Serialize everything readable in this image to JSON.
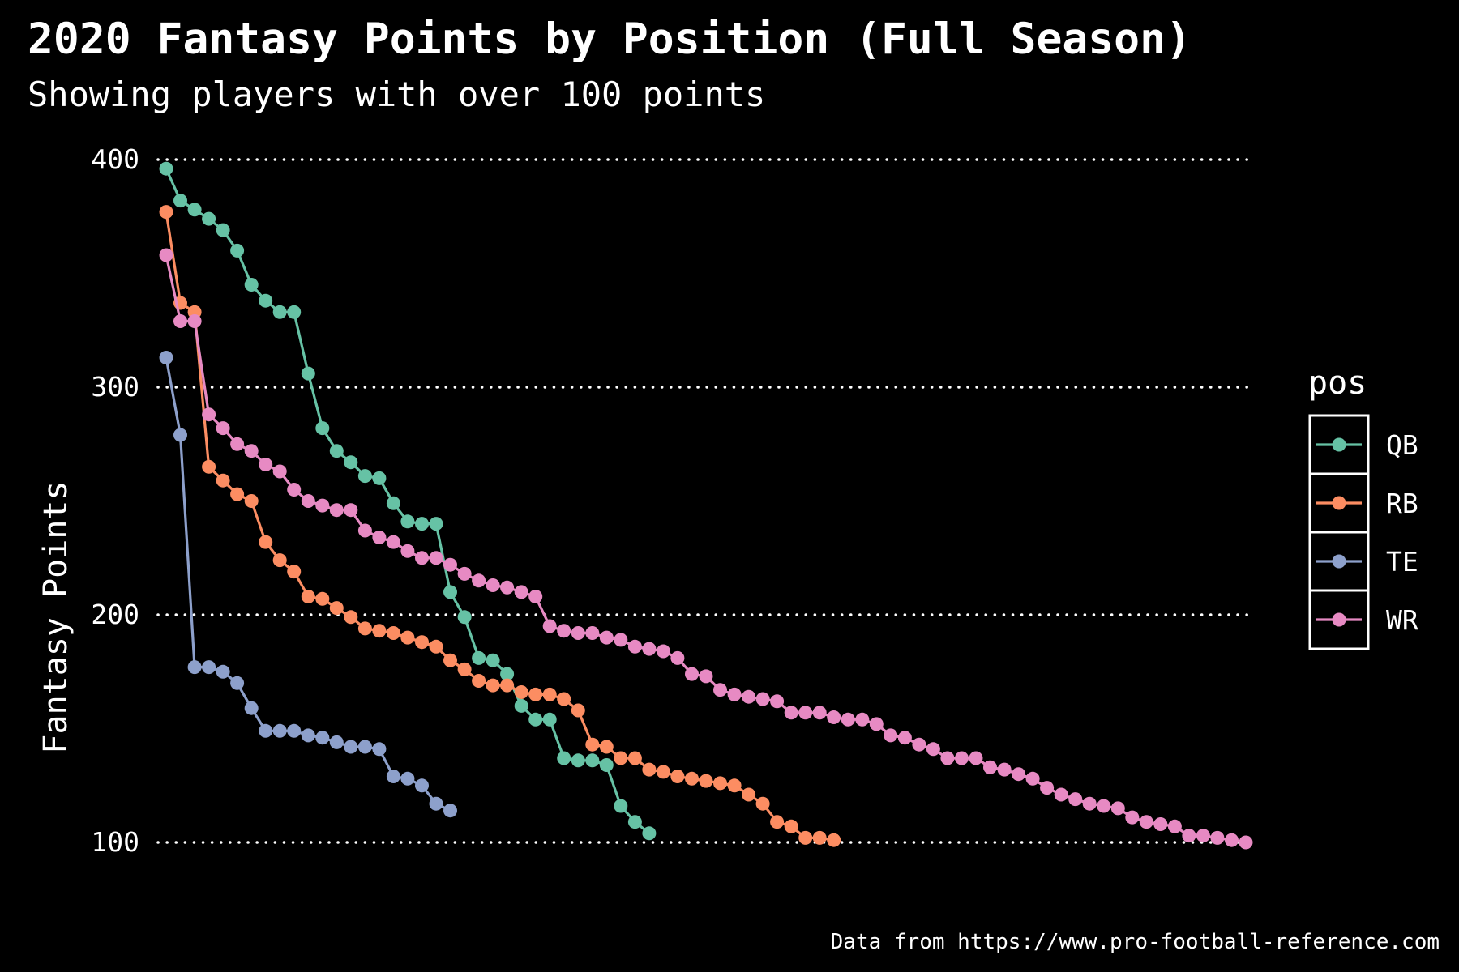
{
  "title": "2020 Fantasy Points by Position (Full Season)",
  "subtitle": "Showing players with over 100 points",
  "caption": "Data from https://www.pro-football-reference.com",
  "chart_data": {
    "type": "line",
    "ylabel": "Fantasy Points",
    "xlabel": "",
    "ylim": [
      75,
      400
    ],
    "xlim": [
      1,
      77
    ],
    "yticks": [
      100,
      200,
      300,
      400
    ],
    "grid": "horizontal dotted",
    "legend_title": "pos",
    "legend_position": "right",
    "background": "#000000",
    "series": [
      {
        "name": "QB",
        "color": "#66c2a5",
        "values": [
          396,
          382,
          378,
          374,
          369,
          360,
          345,
          338,
          333,
          333,
          306,
          282,
          272,
          267,
          261,
          260,
          249,
          241,
          240,
          240,
          210,
          199,
          181,
          180,
          174,
          160,
          154,
          154,
          137,
          136,
          136,
          134,
          116,
          109,
          104
        ]
      },
      {
        "name": "RB",
        "color": "#fc8d62",
        "values": [
          377,
          337,
          333,
          265,
          259,
          253,
          250,
          232,
          224,
          219,
          208,
          207,
          203,
          199,
          194,
          193,
          192,
          190,
          188,
          186,
          180,
          176,
          171,
          169,
          169,
          166,
          165,
          165,
          163,
          158,
          143,
          142,
          137,
          137,
          132,
          131,
          129,
          128,
          127,
          126,
          125,
          121,
          117,
          109,
          107,
          102,
          102,
          101
        ]
      },
      {
        "name": "TE",
        "color": "#8da0cb",
        "values": [
          313,
          279,
          177,
          177,
          175,
          170,
          159,
          149,
          149,
          149,
          147,
          146,
          144,
          142,
          142,
          141,
          129,
          128,
          125,
          117,
          114
        ]
      },
      {
        "name": "WR",
        "color": "#e78ac3",
        "values": [
          358,
          329,
          329,
          288,
          282,
          275,
          272,
          266,
          263,
          255,
          250,
          248,
          246,
          246,
          237,
          234,
          232,
          228,
          225,
          225,
          222,
          218,
          215,
          213,
          212,
          210,
          208,
          195,
          193,
          192,
          192,
          190,
          189,
          186,
          185,
          184,
          181,
          174,
          173,
          167,
          165,
          164,
          163,
          162,
          157,
          157,
          157,
          155,
          154,
          154,
          152,
          147,
          146,
          143,
          141,
          137,
          137,
          137,
          133,
          132,
          130,
          128,
          124,
          121,
          119,
          117,
          116,
          115,
          111,
          109,
          108,
          107,
          103,
          103,
          102,
          101,
          100
        ]
      }
    ]
  }
}
